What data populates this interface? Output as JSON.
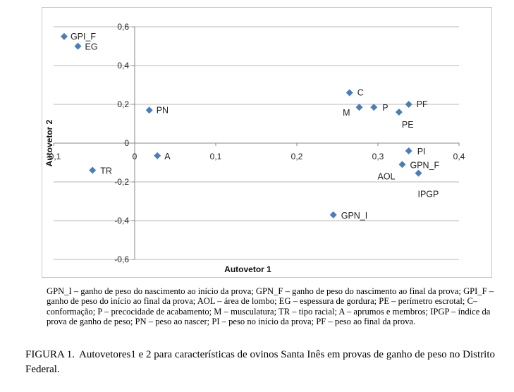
{
  "chart_data": {
    "type": "scatter",
    "title": "",
    "xlabel": "Autovetor 1",
    "ylabel": "Autovetor 2",
    "xlim": [
      -0.1,
      0.4
    ],
    "ylim": [
      -0.6,
      0.6
    ],
    "x_ticks": [
      "-0,1",
      "0",
      "0,1",
      "0,2",
      "0,3",
      "0,4"
    ],
    "y_ticks": [
      "0,6",
      "0,4",
      "0,2",
      "0",
      "-0,2",
      "-0,4",
      "-0,6"
    ],
    "grid": "horizontal",
    "marker_color": "#4a7ebb",
    "points": [
      {
        "name": "GPI_F",
        "x": -0.087,
        "y": 0.55
      },
      {
        "name": "EG",
        "x": -0.07,
        "y": 0.5
      },
      {
        "name": "PN",
        "x": 0.018,
        "y": 0.17
      },
      {
        "name": "A",
        "x": 0.028,
        "y": -0.065
      },
      {
        "name": "TR",
        "x": -0.052,
        "y": -0.14
      },
      {
        "name": "C",
        "x": 0.265,
        "y": 0.26
      },
      {
        "name": "M",
        "x": 0.277,
        "y": 0.185
      },
      {
        "name": "P",
        "x": 0.295,
        "y": 0.185
      },
      {
        "name": "PF",
        "x": 0.338,
        "y": 0.2
      },
      {
        "name": "PE",
        "x": 0.326,
        "y": 0.16
      },
      {
        "name": "PI",
        "x": 0.338,
        "y": -0.04
      },
      {
        "name": "GPN_F",
        "x": 0.33,
        "y": -0.11
      },
      {
        "name": "AOL",
        "x": 0.33,
        "y": -0.11
      },
      {
        "name": "IPGP",
        "x": 0.35,
        "y": -0.155
      },
      {
        "name": "GPN_I",
        "x": 0.245,
        "y": -0.37
      }
    ]
  },
  "legend_note": "GPN_I – ganho de peso do nascimento ao início da prova; GPN_F – ganho de peso do nascimento ao final da prova; GPI_F – ganho de peso do início ao final da prova; AOL – área de lombo; EG – espessura de gordura; PE – perímetro escrotal; C– conformação; P – precocidade de acabamento; M – musculatura; TR – tipo racial; A – aprumos e membros; IPGP – índice da prova de ganho de peso; PN – peso ao nascer; PI – peso no início da prova; PF – peso ao final da prova.",
  "caption": {
    "label": "FIGURA 1.",
    "text": "Autovetores1 e 2 para características de ovinos Santa Inês em provas de ganho de peso no Distrito Federal."
  }
}
